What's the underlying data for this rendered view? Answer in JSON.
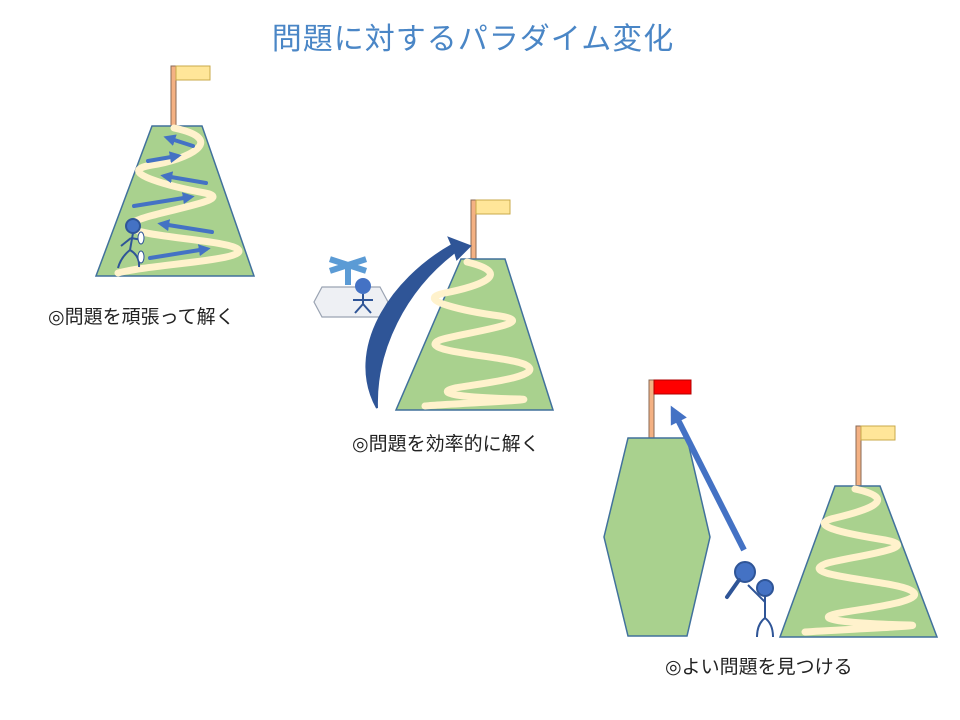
{
  "title": "問題に対するパラダイム変化",
  "captions": {
    "hard": "◎問題を頑張って解く",
    "efficient": "◎問題を効率的に解く",
    "better": "◎よい問題を見つける"
  },
  "colors": {
    "title": "#4a86c6",
    "mountain_fill": "#a9d18e",
    "mountain_stroke": "#41719c",
    "path": "#fff2cc",
    "flag_pole": "#f4b183",
    "flag_normal": "#ffe699",
    "flag_target": "#ff0000",
    "arrow": "#4472c4",
    "arrow_dark": "#2f5597",
    "person": "#4472c4",
    "helicopter_body": "#eef0f4"
  },
  "icons": [
    "mountain",
    "flag",
    "person-climber",
    "helicopter",
    "magnifying-glass",
    "hexagon-mountain"
  ]
}
